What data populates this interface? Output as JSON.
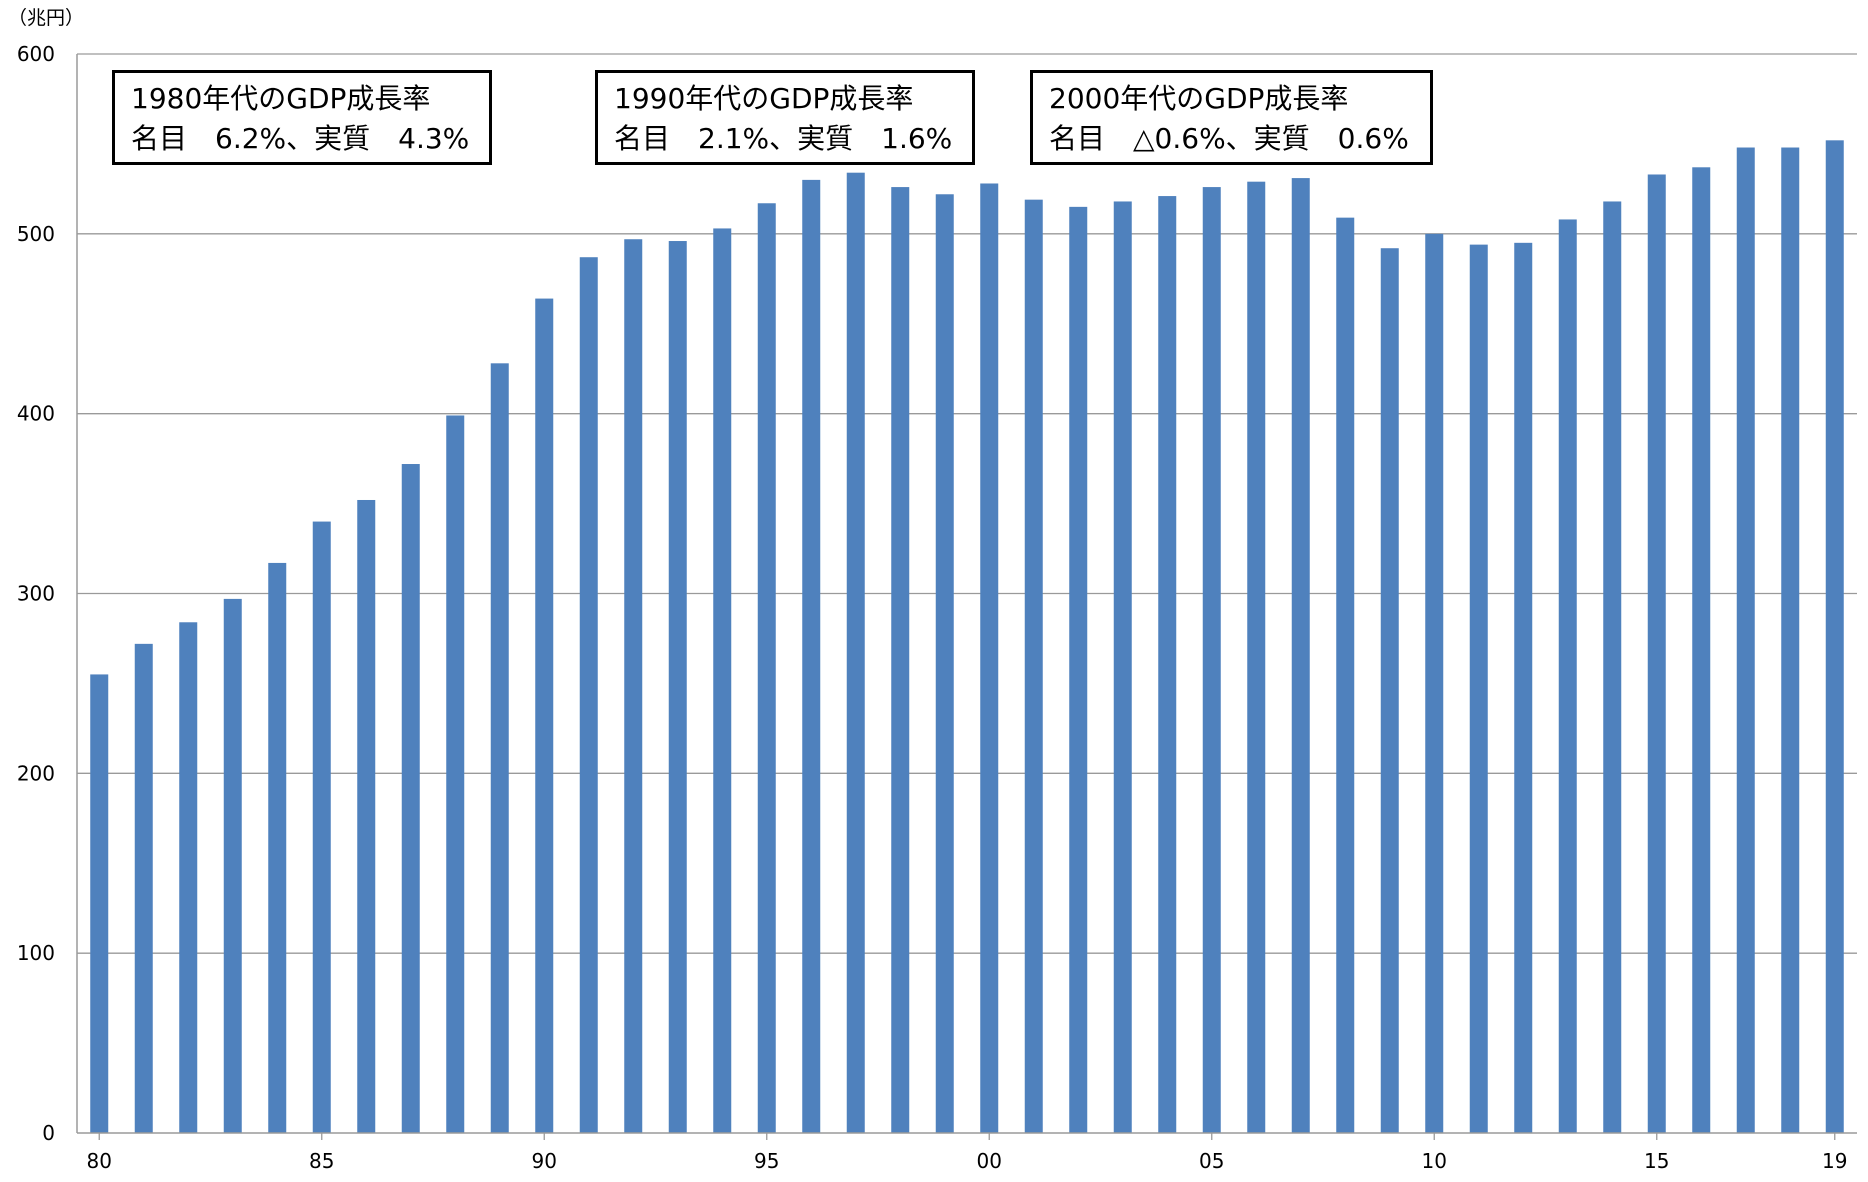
{
  "chart_data": {
    "type": "bar",
    "unit_label": "（兆円）",
    "ylim": [
      0,
      600
    ],
    "y_ticks": [
      0,
      100,
      200,
      300,
      400,
      500,
      600
    ],
    "grid": true,
    "bar_color": "#4f81bd",
    "categories": [
      "80",
      "81",
      "82",
      "83",
      "84",
      "85",
      "86",
      "87",
      "88",
      "89",
      "90",
      "91",
      "92",
      "93",
      "94",
      "95",
      "96",
      "97",
      "98",
      "99",
      "00",
      "01",
      "02",
      "03",
      "04",
      "05",
      "06",
      "07",
      "08",
      "09",
      "10",
      "11",
      "12",
      "13",
      "14",
      "15",
      "16",
      "17",
      "18",
      "19"
    ],
    "x_tick_labels": [
      "80",
      "",
      "",
      "",
      "",
      "85",
      "",
      "",
      "",
      "",
      "90",
      "",
      "",
      "",
      "",
      "95",
      "",
      "",
      "",
      "",
      "00",
      "",
      "",
      "",
      "",
      "05",
      "",
      "",
      "",
      "",
      "10",
      "",
      "",
      "",
      "",
      "15",
      "",
      "",
      "",
      "19"
    ],
    "values": [
      255,
      272,
      284,
      297,
      317,
      340,
      352,
      372,
      399,
      428,
      464,
      487,
      497,
      496,
      503,
      517,
      530,
      534,
      526,
      522,
      528,
      519,
      515,
      518,
      521,
      526,
      529,
      531,
      509,
      492,
      500,
      494,
      495,
      508,
      518,
      533,
      537,
      548,
      548,
      552
    ],
    "annotations": [
      {
        "line1": "1980年代のGDP成長率",
        "line2": "名目　6.2%、実質　4.3%"
      },
      {
        "line1": "1990年代のGDP成長率",
        "line2": "名目　2.1%、実質　1.6%"
      },
      {
        "line1": "2000年代のGDP成長率",
        "line2": "名目　△0.6%、実質　0.6%"
      }
    ]
  }
}
